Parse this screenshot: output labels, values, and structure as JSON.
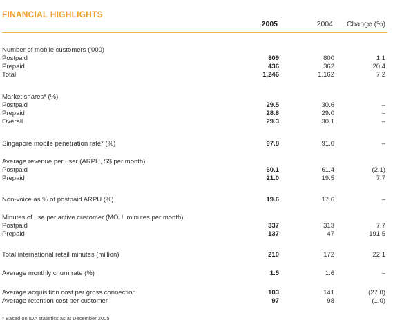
{
  "title": "FINANCIAL HIGHLIGHTS",
  "columns": {
    "c2005": "2005",
    "c2004": "2004",
    "change": "Change (%)"
  },
  "rows": [
    {
      "label": "Number of mobile customers ('000)",
      "v2005": "",
      "v2004": "",
      "change": ""
    },
    {
      "label": "Postpaid",
      "v2005": "809",
      "v2004": "800",
      "change": "1.1"
    },
    {
      "label": "Prepaid",
      "v2005": "436",
      "v2004": "362",
      "change": "20.4"
    },
    {
      "label": "Total",
      "v2005": "1,246",
      "v2004": "1,162",
      "change": "7.2"
    },
    {
      "label": "Market shares* (%)",
      "v2005": "",
      "v2004": "",
      "change": ""
    },
    {
      "label": "Postpaid",
      "v2005": "29.5",
      "v2004": "30.6",
      "change": "–"
    },
    {
      "label": "Prepaid",
      "v2005": "28.8",
      "v2004": "29.0",
      "change": "–"
    },
    {
      "label": "Overall",
      "v2005": "29.3",
      "v2004": "30.1",
      "change": "–"
    },
    {
      "label": "Singapore mobile penetration rate* (%)",
      "v2005": "97.8",
      "v2004": "91.0",
      "change": "–"
    },
    {
      "label": "Average revenue per user (ARPU, S$ per month)",
      "v2005": "",
      "v2004": "",
      "change": ""
    },
    {
      "label": "Postpaid",
      "v2005": "60.1",
      "v2004": "61.4",
      "change": "(2.1)"
    },
    {
      "label": "Prepaid",
      "v2005": "21.0",
      "v2004": "19.5",
      "change": "7.7"
    },
    {
      "label": "Non-voice as % of postpaid ARPU (%)",
      "v2005": "19.6",
      "v2004": "17.6",
      "change": "–"
    },
    {
      "label": "Minutes of use per active customer (MOU, minutes per month)",
      "v2005": "",
      "v2004": "",
      "change": ""
    },
    {
      "label": "Postpaid",
      "v2005": "337",
      "v2004": "313",
      "change": "7.7"
    },
    {
      "label": "Prepaid",
      "v2005": "137",
      "v2004": "47",
      "change": "191.5"
    },
    {
      "label": "Total international retail minutes (million)",
      "v2005": "210",
      "v2004": "172",
      "change": "22.1"
    },
    {
      "label": "Average monthly churn rate (%)",
      "v2005": "1.5",
      "v2004": "1.6",
      "change": "–"
    },
    {
      "label": "Average acquisition cost per gross connection",
      "v2005": "103",
      "v2004": "141",
      "change": "(27.0)"
    },
    {
      "label": "Average retention cost per customer",
      "v2005": "97",
      "v2004": "98",
      "change": "(1.0)"
    }
  ],
  "footnote": "* Based on IDA statistics as at December 2005"
}
